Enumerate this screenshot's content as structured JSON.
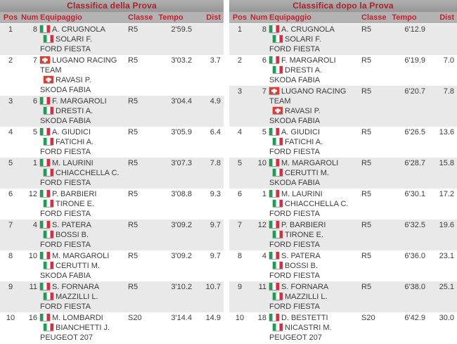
{
  "colors": {
    "title_text": "#a8232a",
    "header_text": "#c5222b",
    "titlebar_top": "#b0b0b0",
    "titlebar_bottom": "#979797",
    "headerbar": "#b3b3b3",
    "row_alt": "#e9e9e9",
    "row_text": "#3c3c3c",
    "italy_green": "#1aa053",
    "italy_red": "#dd2c3d",
    "swiss_red": "#e8382c"
  },
  "tables": [
    {
      "title": "Classifica della Prova",
      "columns": [
        "Pos",
        "Num",
        "Equipaggio",
        "Classe",
        "Tempo",
        "Dist"
      ],
      "rows": [
        {
          "pos": "1",
          "num": "8",
          "crew": [
            {
              "flag": "italy",
              "name": "A. CRUGNOLA"
            },
            {
              "flag": "italy",
              "name": "SOLARI F."
            }
          ],
          "car": "FORD FIESTA",
          "classe": "R5",
          "tempo": "2'59.5",
          "dist": ""
        },
        {
          "pos": "2",
          "num": "7",
          "crew": [
            {
              "flag": "switzerland",
              "name": "LUGANO RACING TEAM"
            },
            {
              "flag": "switzerland",
              "name": "RAVASI P."
            }
          ],
          "car": "SKODA FABIA",
          "classe": "R5",
          "tempo": "3'03.2",
          "dist": "3.7"
        },
        {
          "pos": "3",
          "num": "6",
          "crew": [
            {
              "flag": "italy",
              "name": "F. MARGAROLI"
            },
            {
              "flag": "italy",
              "name": "DRESTI A."
            }
          ],
          "car": "SKODA FABIA",
          "classe": "R5",
          "tempo": "3'04.4",
          "dist": "4.9"
        },
        {
          "pos": "4",
          "num": "5",
          "crew": [
            {
              "flag": "italy",
              "name": "A. GIUDICI"
            },
            {
              "flag": "italy",
              "name": "FATICHI A."
            }
          ],
          "car": "FORD FIESTA",
          "classe": "R5",
          "tempo": "3'05.9",
          "dist": "6.4"
        },
        {
          "pos": "5",
          "num": "1",
          "crew": [
            {
              "flag": "italy",
              "name": "M. LAURINI"
            },
            {
              "flag": "italy",
              "name": "CHIACCHELLA C."
            }
          ],
          "car": "FORD FIESTA",
          "classe": "R5",
          "tempo": "3'07.3",
          "dist": "7.8"
        },
        {
          "pos": "6",
          "num": "12",
          "crew": [
            {
              "flag": "italy",
              "name": "P. BARBIERI"
            },
            {
              "flag": "italy",
              "name": "TIRONE E."
            }
          ],
          "car": "FORD FIESTA",
          "classe": "R5",
          "tempo": "3'08.8",
          "dist": "9.3"
        },
        {
          "pos": "7",
          "num": "4",
          "crew": [
            {
              "flag": "italy",
              "name": "S. PATERA"
            },
            {
              "flag": "italy",
              "name": "BOSSI B."
            }
          ],
          "car": "FORD FIESTA",
          "classe": "R5",
          "tempo": "3'09.2",
          "dist": "9.7"
        },
        {
          "pos": "8",
          "num": "10",
          "crew": [
            {
              "flag": "italy",
              "name": "M. MARGAROLI"
            },
            {
              "flag": "italy",
              "name": "CERUTTI M."
            }
          ],
          "car": "SKODA FABIA",
          "classe": "R5",
          "tempo": "3'09.2",
          "dist": "9.7"
        },
        {
          "pos": "9",
          "num": "11",
          "crew": [
            {
              "flag": "italy",
              "name": "S. FORNARA"
            },
            {
              "flag": "italy",
              "name": "MAZZILLI L."
            }
          ],
          "car": "FORD FIESTA",
          "classe": "R5",
          "tempo": "3'10.2",
          "dist": "10.7"
        },
        {
          "pos": "10",
          "num": "16",
          "crew": [
            {
              "flag": "italy",
              "name": "M. LOMBARDI"
            },
            {
              "flag": "italy",
              "name": "BIANCHETTI J."
            }
          ],
          "car": "PEUGEOT 207",
          "classe": "S20",
          "tempo": "3'14.4",
          "dist": "14.9"
        }
      ]
    },
    {
      "title": "Classifica dopo la Prova",
      "columns": [
        "Pos",
        "Num",
        "Equipaggio",
        "Classe",
        "Tempo",
        "Dist"
      ],
      "rows": [
        {
          "pos": "1",
          "num": "8",
          "crew": [
            {
              "flag": "italy",
              "name": "A. CRUGNOLA"
            },
            {
              "flag": "italy",
              "name": "SOLARI F."
            }
          ],
          "car": "FORD FIESTA",
          "classe": "R5",
          "tempo": "6'12.9",
          "dist": ""
        },
        {
          "pos": "2",
          "num": "6",
          "crew": [
            {
              "flag": "italy",
              "name": "F. MARGAROLI"
            },
            {
              "flag": "italy",
              "name": "DRESTI A."
            }
          ],
          "car": "SKODA FABIA",
          "classe": "R5",
          "tempo": "6'19.9",
          "dist": "7.0"
        },
        {
          "pos": "3",
          "num": "7",
          "crew": [
            {
              "flag": "switzerland",
              "name": "LUGANO RACING TEAM"
            },
            {
              "flag": "switzerland",
              "name": "RAVASI P."
            }
          ],
          "car": "SKODA FABIA",
          "classe": "R5",
          "tempo": "6'20.7",
          "dist": "7.8"
        },
        {
          "pos": "4",
          "num": "5",
          "crew": [
            {
              "flag": "italy",
              "name": "A. GIUDICI"
            },
            {
              "flag": "italy",
              "name": "FATICHI A."
            }
          ],
          "car": "FORD FIESTA",
          "classe": "R5",
          "tempo": "6'26.5",
          "dist": "13.6"
        },
        {
          "pos": "5",
          "num": "10",
          "crew": [
            {
              "flag": "italy",
              "name": "M. MARGAROLI"
            },
            {
              "flag": "italy",
              "name": "CERUTTI M."
            }
          ],
          "car": "SKODA FABIA",
          "classe": "R5",
          "tempo": "6'28.7",
          "dist": "15.8"
        },
        {
          "pos": "6",
          "num": "1",
          "crew": [
            {
              "flag": "italy",
              "name": "M. LAURINI"
            },
            {
              "flag": "italy",
              "name": "CHIACCHELLA C."
            }
          ],
          "car": "FORD FIESTA",
          "classe": "R5",
          "tempo": "6'30.1",
          "dist": "17.2"
        },
        {
          "pos": "7",
          "num": "12",
          "crew": [
            {
              "flag": "italy",
              "name": "P. BARBIERI"
            },
            {
              "flag": "italy",
              "name": "TIRONE E."
            }
          ],
          "car": "FORD FIESTA",
          "classe": "R5",
          "tempo": "6'32.5",
          "dist": "19.6"
        },
        {
          "pos": "8",
          "num": "4",
          "crew": [
            {
              "flag": "italy",
              "name": "S. PATERA"
            },
            {
              "flag": "italy",
              "name": "BOSSI B."
            }
          ],
          "car": "FORD FIESTA",
          "classe": "R5",
          "tempo": "6'36.0",
          "dist": "23.1"
        },
        {
          "pos": "9",
          "num": "11",
          "crew": [
            {
              "flag": "italy",
              "name": "S. FORNARA"
            },
            {
              "flag": "italy",
              "name": "MAZZILLI L."
            }
          ],
          "car": "FORD FIESTA",
          "classe": "R5",
          "tempo": "6'38.0",
          "dist": "25.1"
        },
        {
          "pos": "10",
          "num": "18",
          "crew": [
            {
              "flag": "italy",
              "name": "D. BESTETTI"
            },
            {
              "flag": "italy",
              "name": "NICASTRI M."
            }
          ],
          "car": "PEUGEOT 207",
          "classe": "S20",
          "tempo": "6'42.9",
          "dist": "30.0"
        }
      ]
    }
  ]
}
